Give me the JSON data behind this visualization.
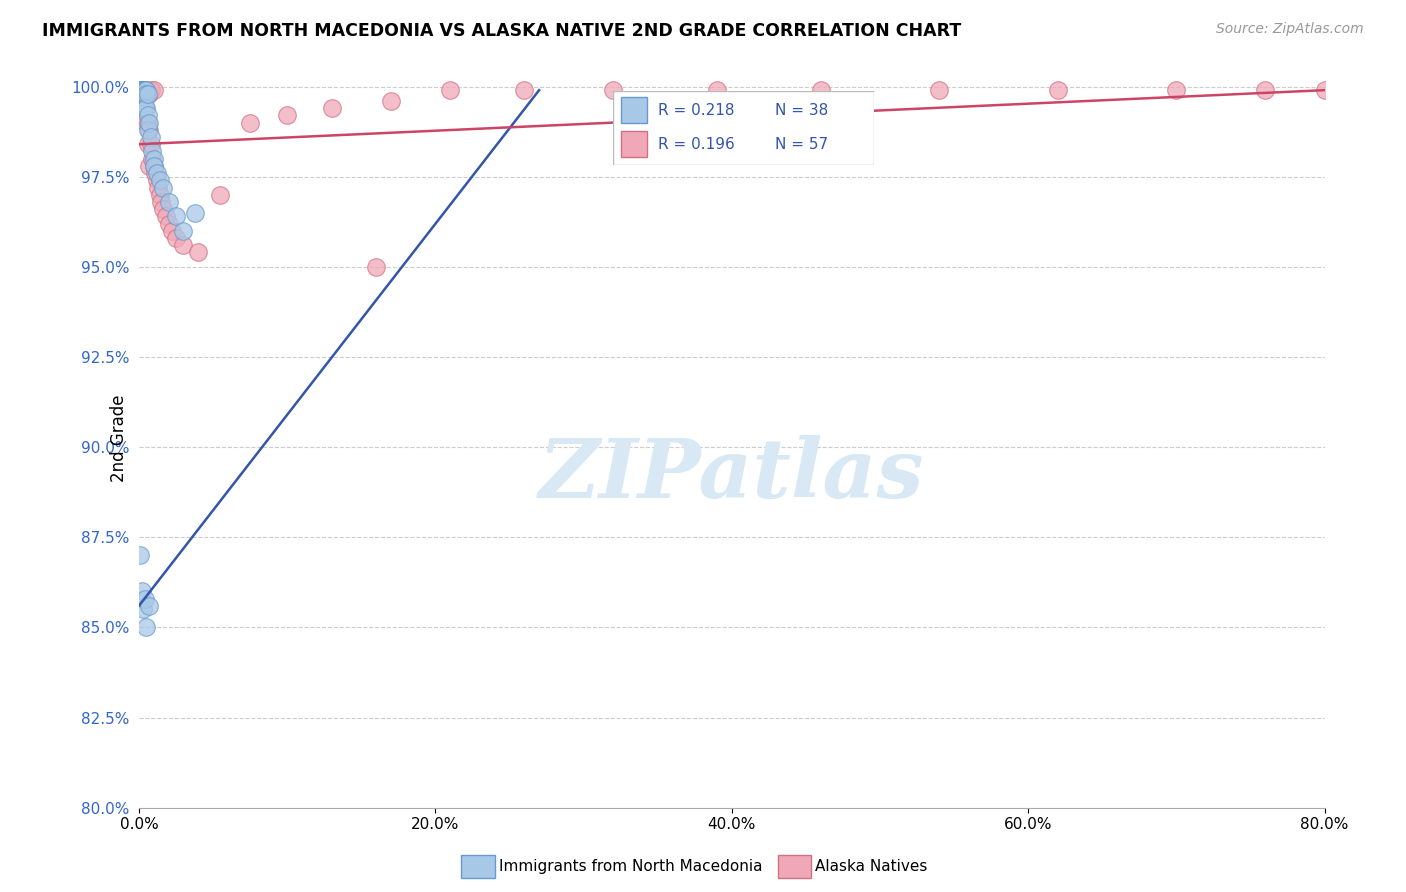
{
  "title": "IMMIGRANTS FROM NORTH MACEDONIA VS ALASKA NATIVE 2ND GRADE CORRELATION CHART",
  "source": "Source: ZipAtlas.com",
  "ylabel_label": "2nd Grade",
  "xlim": [
    0.0,
    0.8
  ],
  "ylim": [
    0.8,
    1.005
  ],
  "x_ticks": [
    0.0,
    0.2,
    0.4,
    0.6,
    0.8
  ],
  "x_tick_labels": [
    "0.0%",
    "20.0%",
    "40.0%",
    "60.0%",
    "80.0%"
  ],
  "y_ticks": [
    0.8,
    0.825,
    0.85,
    0.875,
    0.9,
    0.925,
    0.95,
    0.975,
    1.0
  ],
  "y_tick_labels": [
    "80.0%",
    "82.5%",
    "85.0%",
    "87.5%",
    "90.0%",
    "92.5%",
    "95.0%",
    "97.5%",
    "100.0%"
  ],
  "y_gridlines": [
    0.825,
    0.85,
    0.875,
    0.9,
    0.925,
    0.95,
    0.975,
    1.0
  ],
  "legend_r1": "R = 0.218",
  "legend_n1": "N = 38",
  "legend_r2": "R = 0.196",
  "legend_n2": "N = 57",
  "blue_fill": "#A8C8E8",
  "blue_edge": "#6699CC",
  "pink_fill": "#F0A8B8",
  "pink_edge": "#D07080",
  "blue_line_color": "#3355AA",
  "pink_line_color": "#CC4466",
  "watermark_color": "#D8E8F5",
  "blue_line_x": [
    0.0,
    0.27
  ],
  "blue_line_y": [
    0.856,
    0.999
  ],
  "pink_line_x": [
    0.0,
    0.8
  ],
  "pink_line_y": [
    0.984,
    0.999
  ],
  "blue_x": [
    0.001,
    0.001,
    0.001,
    0.002,
    0.002,
    0.002,
    0.002,
    0.003,
    0.003,
    0.003,
    0.003,
    0.003,
    0.003,
    0.004,
    0.004,
    0.004,
    0.004,
    0.004,
    0.005,
    0.005,
    0.005,
    0.005,
    0.006,
    0.006,
    0.006,
    0.007,
    0.007,
    0.008,
    0.009,
    0.01,
    0.01,
    0.012,
    0.014,
    0.016,
    0.02,
    0.025,
    0.03,
    0.038
  ],
  "blue_y": [
    0.999,
    0.998,
    0.87,
    0.999,
    0.999,
    0.998,
    0.86,
    0.999,
    0.999,
    0.999,
    0.998,
    0.997,
    0.855,
    0.999,
    0.999,
    0.998,
    0.994,
    0.858,
    0.999,
    0.998,
    0.994,
    0.85,
    0.998,
    0.992,
    0.988,
    0.99,
    0.856,
    0.986,
    0.982,
    0.98,
    0.978,
    0.976,
    0.974,
    0.972,
    0.968,
    0.964,
    0.96,
    0.965
  ],
  "pink_x": [
    0.001,
    0.001,
    0.001,
    0.002,
    0.002,
    0.002,
    0.003,
    0.003,
    0.003,
    0.003,
    0.003,
    0.004,
    0.004,
    0.004,
    0.004,
    0.005,
    0.005,
    0.005,
    0.006,
    0.006,
    0.006,
    0.007,
    0.007,
    0.007,
    0.008,
    0.008,
    0.009,
    0.01,
    0.01,
    0.011,
    0.012,
    0.013,
    0.014,
    0.015,
    0.016,
    0.018,
    0.02,
    0.022,
    0.025,
    0.03,
    0.04,
    0.055,
    0.075,
    0.1,
    0.13,
    0.17,
    0.21,
    0.26,
    0.32,
    0.39,
    0.46,
    0.54,
    0.62,
    0.7,
    0.76,
    0.8,
    0.16
  ],
  "pink_y": [
    0.999,
    0.999,
    0.999,
    0.999,
    0.999,
    0.999,
    0.999,
    0.999,
    0.999,
    0.998,
    0.994,
    0.999,
    0.999,
    0.998,
    0.994,
    0.999,
    0.998,
    0.99,
    0.998,
    0.99,
    0.984,
    0.998,
    0.988,
    0.978,
    0.999,
    0.984,
    0.98,
    0.999,
    0.978,
    0.976,
    0.974,
    0.972,
    0.97,
    0.968,
    0.966,
    0.964,
    0.962,
    0.96,
    0.958,
    0.956,
    0.954,
    0.97,
    0.99,
    0.992,
    0.994,
    0.996,
    0.999,
    0.999,
    0.999,
    0.999,
    0.999,
    0.999,
    0.999,
    0.999,
    0.999,
    0.999,
    0.95
  ]
}
